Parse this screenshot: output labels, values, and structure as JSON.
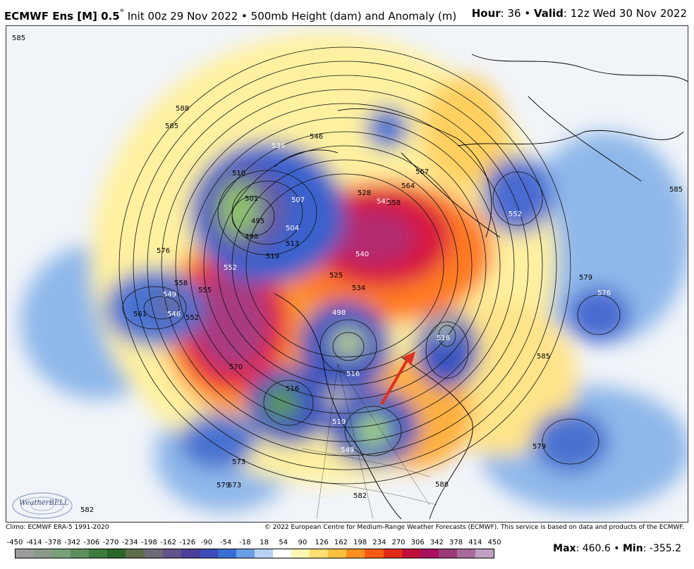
{
  "header": {
    "title_product": "ECMWF Ens [M] 0.5",
    "title_degree": "°",
    "title_rest": " Init 00z 29 Nov 2022 • 500mb Height (dam) and Anomaly (m)",
    "hour_label": "Hour",
    "hour_value": ": 36 • ",
    "valid_label": "Valid",
    "valid_value": ": 12z Wed 30 Nov 2022"
  },
  "footer": {
    "climo": "Climo: ECMWF ERA-5 1991-2020",
    "copyright": "© 2022 European Centre for Medium-Range Weather Forecasts (ECMWF). This service is based on data and products of the ECMWF."
  },
  "colorbar": {
    "labels": [
      "-450",
      "-414",
      "-378",
      "-342",
      "-306",
      "-270",
      "-234",
      "-198",
      "-162",
      "-126",
      "-90",
      "-54",
      "-18",
      "18",
      "54",
      "90",
      "126",
      "162",
      "198",
      "234",
      "270",
      "306",
      "342",
      "378",
      "414",
      "450"
    ],
    "colors": [
      "#9c9c9c",
      "#8a9a8a",
      "#7aa07a",
      "#5c8f5c",
      "#3f7a3f",
      "#2a662a",
      "#5f6d4a",
      "#6e6a78",
      "#64528a",
      "#4c3f9a",
      "#3d4db8",
      "#3a6fd1",
      "#6a9fe6",
      "#b7d2f3",
      "#ffffff",
      "#fff6b0",
      "#ffe070",
      "#ffc040",
      "#ff9020",
      "#ff5a10",
      "#e02a1a",
      "#c0103a",
      "#a81060",
      "#9a3a7a",
      "#a86a9a",
      "#c0a0c0"
    ],
    "max_label": "Max",
    "max_value": ": 460.6 • ",
    "min_label": "Min",
    "min_value": ": -355.2"
  },
  "logo": {
    "text": "WeatherBELL"
  },
  "map": {
    "contour_labels": [
      "585",
      "588",
      "585",
      "582",
      "534",
      "546",
      "510",
      "501",
      "507",
      "495",
      "504",
      "498",
      "513",
      "519",
      "576",
      "558",
      "552",
      "549",
      "546",
      "561",
      "552",
      "555",
      "543",
      "540",
      "525",
      "534",
      "573",
      "516",
      "498",
      "516",
      "570",
      "516",
      "519",
      "549",
      "573",
      "579",
      "582",
      "588",
      "585",
      "585",
      "579",
      "576",
      "579",
      "552",
      "528",
      "564",
      "567",
      "558"
    ]
  }
}
